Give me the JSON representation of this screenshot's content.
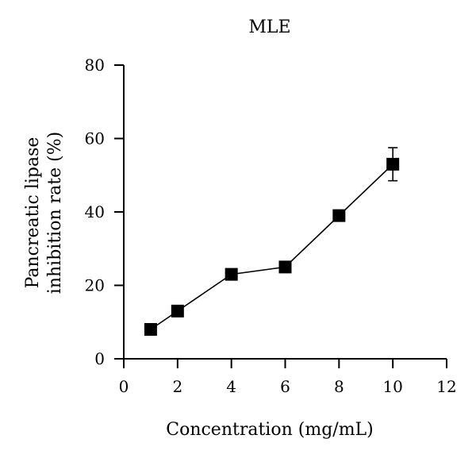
{
  "chart_data": {
    "type": "line",
    "title": "MLE",
    "xlabel": "Concentration (mg/mL)",
    "ylabel_lines": [
      "Pancreatic lipase",
      "inhibition rate (%)"
    ],
    "xlim": [
      0,
      12
    ],
    "ylim": [
      0,
      80
    ],
    "xticks": [
      0,
      2,
      4,
      6,
      8,
      10,
      12
    ],
    "yticks": [
      0,
      20,
      40,
      60,
      80
    ],
    "grid": false,
    "legend": "none",
    "marker": "square",
    "color": "#000000",
    "series": [
      {
        "x": [
          1,
          2,
          4,
          6,
          8,
          10
        ],
        "y": [
          8,
          13,
          23,
          25,
          39,
          53
        ],
        "error": [
          0,
          0,
          0,
          0,
          0,
          4.5
        ]
      }
    ]
  }
}
